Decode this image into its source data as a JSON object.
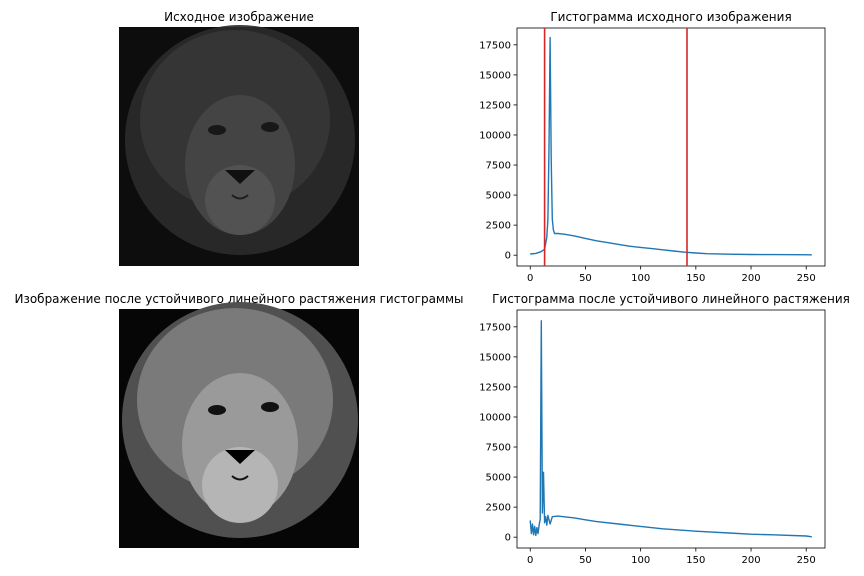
{
  "figure": {
    "panels": [
      {
        "id": "img1",
        "title": "Исходное изображение"
      },
      {
        "id": "hist1",
        "title": "Гистограмма исходного изображения"
      },
      {
        "id": "img2",
        "title": "Изображение после устойчивого линейного растяжения гистограммы"
      },
      {
        "id": "hist2",
        "title": "Гистограмма после устойчивого линейного растяжения"
      }
    ]
  },
  "chart_data": [
    {
      "type": "line",
      "title": "Гистограмма исходного изображения",
      "xlabel": "",
      "ylabel": "",
      "xlim": [
        -12,
        267
      ],
      "ylim": [
        -900,
        18900
      ],
      "xticks": [
        0,
        50,
        100,
        150,
        200,
        250
      ],
      "yticks": [
        0,
        2500,
        5000,
        7500,
        10000,
        12500,
        15000,
        17500
      ],
      "vlines": [
        {
          "x": 13,
          "color": "#d62728"
        },
        {
          "x": 142,
          "color": "#d62728"
        }
      ],
      "series": [
        {
          "color": "#1f77b4",
          "x": [
            0,
            5,
            10,
            13,
            15,
            16,
            17,
            18,
            19,
            20,
            21,
            22,
            25,
            30,
            40,
            50,
            60,
            70,
            80,
            90,
            100,
            110,
            120,
            130,
            140,
            150,
            160,
            180,
            200,
            220,
            240,
            255
          ],
          "y": [
            100,
            150,
            300,
            500,
            1500,
            3000,
            9000,
            18100,
            8000,
            3000,
            2100,
            1800,
            1800,
            1750,
            1600,
            1400,
            1200,
            1050,
            900,
            750,
            650,
            550,
            450,
            350,
            250,
            180,
            120,
            80,
            60,
            50,
            40,
            30
          ]
        }
      ]
    },
    {
      "type": "line",
      "title": "Гистограмма после устойчивого линейного растяжения",
      "xlabel": "",
      "ylabel": "",
      "xlim": [
        -12,
        267
      ],
      "ylim": [
        -900,
        18900
      ],
      "xticks": [
        0,
        50,
        100,
        150,
        200,
        250
      ],
      "yticks": [
        0,
        2500,
        5000,
        7500,
        10000,
        12500,
        15000,
        17500
      ],
      "series": [
        {
          "color": "#1f77b4",
          "x": [
            0,
            1,
            2,
            3,
            4,
            5,
            6,
            7,
            8,
            9,
            10,
            11,
            12,
            13,
            14,
            15,
            16,
            18,
            20,
            25,
            30,
            40,
            50,
            60,
            80,
            100,
            120,
            150,
            180,
            200,
            220,
            250,
            255
          ],
          "y": [
            1400,
            300,
            1100,
            200,
            900,
            150,
            800,
            300,
            1000,
            1500,
            18000,
            2000,
            5400,
            1200,
            1700,
            1000,
            1800,
            1100,
            1700,
            1750,
            1700,
            1600,
            1450,
            1300,
            1100,
            900,
            700,
            500,
            350,
            250,
            200,
            100,
            30
          ]
        }
      ]
    }
  ]
}
